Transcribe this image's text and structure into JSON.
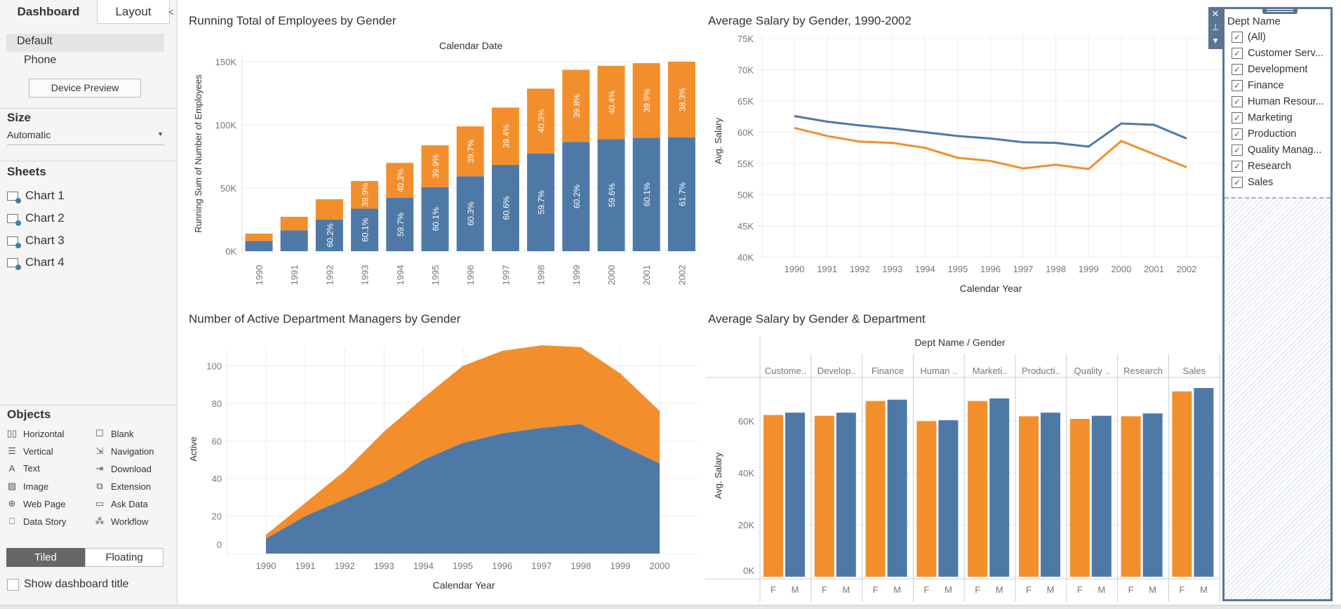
{
  "left_panel": {
    "tabs": [
      "Dashboard",
      "Layout"
    ],
    "collapse": "<",
    "device": {
      "items": [
        "Default",
        "Phone"
      ],
      "preview_button": "Device Preview"
    },
    "size": {
      "heading": "Size",
      "value": "Automatic"
    },
    "sheets": {
      "heading": "Sheets",
      "items": [
        "Chart 1",
        "Chart 2",
        "Chart 3",
        "Chart 4"
      ]
    },
    "objects": {
      "heading": "Objects",
      "items": [
        {
          "label": "Horizontal",
          "icon": "horizontal-container-icon",
          "glyph": "▯▯"
        },
        {
          "label": "Blank",
          "icon": "blank-icon",
          "glyph": "☐"
        },
        {
          "label": "Vertical",
          "icon": "vertical-container-icon",
          "glyph": "☰"
        },
        {
          "label": "Navigation",
          "icon": "navigation-icon",
          "glyph": "⇲"
        },
        {
          "label": "Text",
          "icon": "text-icon",
          "glyph": "A"
        },
        {
          "label": "Download",
          "icon": "download-icon",
          "glyph": "⇥"
        },
        {
          "label": "Image",
          "icon": "image-icon",
          "glyph": "▨"
        },
        {
          "label": "Extension",
          "icon": "extension-icon",
          "glyph": "⧉"
        },
        {
          "label": "Web Page",
          "icon": "globe-icon",
          "glyph": "⊕"
        },
        {
          "label": "Ask Data",
          "icon": "ask-data-icon",
          "glyph": "▭"
        },
        {
          "label": "Data Story",
          "icon": "book-icon",
          "glyph": "⎕"
        },
        {
          "label": "Workflow",
          "icon": "workflow-icon",
          "glyph": "⁂"
        }
      ]
    },
    "layout_toggle": {
      "tiled": "Tiled",
      "floating": "Floating",
      "selected": "Tiled"
    },
    "show_title": {
      "label": "Show dashboard title",
      "checked": false
    }
  },
  "filter": {
    "title": "Dept Name",
    "toolbar": {
      "close": "✕",
      "pin": "⊥",
      "menu": "▾"
    },
    "items": [
      {
        "label": "(All)",
        "checked": true
      },
      {
        "label": "Customer Serv...",
        "checked": true
      },
      {
        "label": "Development",
        "checked": true
      },
      {
        "label": "Finance",
        "checked": true
      },
      {
        "label": "Human Resour...",
        "checked": true
      },
      {
        "label": "Marketing",
        "checked": true
      },
      {
        "label": "Production",
        "checked": true
      },
      {
        "label": "Quality Manag...",
        "checked": true
      },
      {
        "label": "Research",
        "checked": true
      },
      {
        "label": "Sales",
        "checked": true
      }
    ]
  },
  "colors": {
    "orange": "#f28e2b",
    "blue": "#4e79a7"
  },
  "chart_data": [
    {
      "type": "bar",
      "stacked": true,
      "title": "Running Total of Employees by Gender",
      "column_header": "Calendar Date",
      "ylabel": "Running Sum of Number of Employees",
      "ylim": [
        0,
        150000
      ],
      "yticks": [
        {
          "v": 0,
          "label": "0K"
        },
        {
          "v": 50000,
          "label": "50K"
        },
        {
          "v": 100000,
          "label": "100K"
        },
        {
          "v": 150000,
          "label": "150K"
        }
      ],
      "categories": [
        "1990",
        "1991",
        "1992",
        "1993",
        "1994",
        "1995",
        "1996",
        "1997",
        "1998",
        "1999",
        "2000",
        "2001",
        "2002"
      ],
      "series": [
        {
          "color": "#4e79a7",
          "values": [
            8000,
            16500,
            25100,
            33600,
            42200,
            50700,
            59300,
            68300,
            77400,
            86500,
            88600,
            89700,
            90200
          ],
          "labels": [
            "",
            "",
            "60.2%",
            "60.1%",
            "59.7%",
            "60.1%",
            "60.3%",
            "60.6%",
            "59.7%",
            "60.2%",
            "59.6%",
            "60.1%",
            "61.7%"
          ]
        },
        {
          "color": "#f28e2b",
          "values": [
            5900,
            10700,
            16000,
            21900,
            27700,
            33100,
            39500,
            45400,
            51300,
            57100,
            58200,
            59200,
            59800
          ],
          "labels": [
            "",
            "",
            "",
            "39.9%",
            "40.3%",
            "39.9%",
            "39.7%",
            "39.4%",
            "40.3%",
            "39.8%",
            "40.4%",
            "39.9%",
            "38.3%"
          ]
        }
      ],
      "grid": true
    },
    {
      "type": "line",
      "title": "Average Salary by Gender, 1990-2002",
      "xlabel": "Calendar Year",
      "ylabel": "Avg. Salary",
      "ylim": [
        40000,
        75000
      ],
      "yticks": [
        {
          "v": 40000,
          "label": "40K"
        },
        {
          "v": 45000,
          "label": "45K"
        },
        {
          "v": 50000,
          "label": "50K"
        },
        {
          "v": 55000,
          "label": "55K"
        },
        {
          "v": 60000,
          "label": "60K"
        },
        {
          "v": 65000,
          "label": "65K"
        },
        {
          "v": 70000,
          "label": "70K"
        },
        {
          "v": 75000,
          "label": "75K"
        }
      ],
      "x": [
        "1990",
        "1991",
        "1992",
        "1993",
        "1994",
        "1995",
        "1996",
        "1997",
        "1998",
        "1999",
        "2000",
        "2001",
        "2002"
      ],
      "series": [
        {
          "color": "#4e79a7",
          "values": [
            62600,
            61700,
            61100,
            60600,
            60000,
            59400,
            59000,
            58400,
            58300,
            57700,
            61400,
            61200,
            59000
          ]
        },
        {
          "color": "#f28e2b",
          "values": [
            60700,
            59400,
            58500,
            58300,
            57500,
            55900,
            55400,
            54200,
            54800,
            54100,
            58600,
            56500,
            54400
          ]
        }
      ],
      "grid": true
    },
    {
      "type": "area",
      "stacked": true,
      "title": "Number of Active Department Managers by Gender",
      "xlabel": "Calendar Year",
      "ylabel": "Active",
      "ylim": [
        0,
        115
      ],
      "yticks": [
        {
          "v": 0,
          "label": "0"
        },
        {
          "v": 20,
          "label": "20"
        },
        {
          "v": 40,
          "label": "40"
        },
        {
          "v": 60,
          "label": "60"
        },
        {
          "v": 80,
          "label": "80"
        },
        {
          "v": 100,
          "label": "100"
        }
      ],
      "x": [
        "1990",
        "1991",
        "1992",
        "1993",
        "1994",
        "1995",
        "1996",
        "1997",
        "1998",
        "1999",
        "2000"
      ],
      "series": [
        {
          "color": "#4e79a7",
          "values": [
            8,
            20,
            29,
            38,
            50,
            59,
            64,
            67,
            69,
            58,
            48
          ]
        },
        {
          "color": "#f28e2b",
          "values": [
            2,
            7,
            15,
            27,
            33,
            41,
            44,
            44,
            41,
            38,
            28
          ]
        }
      ],
      "grid": true
    },
    {
      "type": "bar",
      "title": "Average Salary by Gender & Department",
      "column_header": "Dept Name  /  Gender",
      "ylabel": "Avg. Salary",
      "ylim": [
        0,
        76000
      ],
      "yticks": [
        {
          "v": 0,
          "label": "0K"
        },
        {
          "v": 20000,
          "label": "20K"
        },
        {
          "v": 40000,
          "label": "40K"
        },
        {
          "v": 60000,
          "label": "60K"
        }
      ],
      "categories": [
        "Custome..",
        "Develop..",
        "Finance",
        "Human ..",
        "Marketi..",
        "Producti..",
        "Quality ..",
        "Research",
        "Sales"
      ],
      "subcategories": [
        "F",
        "M"
      ],
      "series": [
        {
          "color": "#f28e2b",
          "values": [
            62300,
            62000,
            67700,
            59900,
            67700,
            61800,
            60800,
            61800,
            71400
          ]
        },
        {
          "color": "#4e79a7",
          "values": [
            63200,
            63200,
            68200,
            60300,
            68700,
            63200,
            62000,
            62900,
            72700
          ]
        }
      ],
      "grid": true
    }
  ]
}
